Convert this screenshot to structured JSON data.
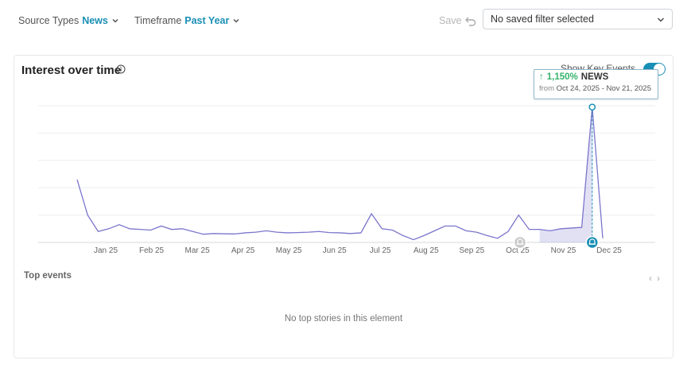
{
  "filters": {
    "source_types": {
      "label": "Source Types",
      "value": "News"
    },
    "timeframe": {
      "label": "Timeframe",
      "value": "Past Year"
    }
  },
  "toolbar": {
    "save_label": "Save",
    "saved_filter_placeholder": "No saved filter selected"
  },
  "card": {
    "title": "Interest over time",
    "show_key_events_label": "Show Key Events",
    "show_key_events_on": true
  },
  "tooltip": {
    "change": "1,150%",
    "series": "NEWS",
    "from_label": "from",
    "range": "Oct 24, 2025 - Nov 21, 2025"
  },
  "chart_data": {
    "type": "line",
    "x_tick_labels": [
      "Jan 25",
      "Feb 25",
      "Mar 25",
      "Apr 25",
      "May 25",
      "Jun 25",
      "Jul 25",
      "Aug 25",
      "Sep 25",
      "Oct 25",
      "Nov 25",
      "Dec 25"
    ],
    "series": [
      {
        "name": "NEWS",
        "color": "#7b75cc",
        "values": [
          46,
          20,
          8,
          10,
          13,
          10,
          9.5,
          9,
          12,
          9.5,
          10,
          8,
          6,
          6.5,
          6.3,
          6.2,
          7,
          7.5,
          8.5,
          7.5,
          7,
          7.2,
          7.5,
          8,
          7.2,
          7,
          6.5,
          7,
          21,
          10,
          9,
          5,
          2,
          5,
          8.5,
          12,
          12,
          8.5,
          7.5,
          5,
          3,
          8,
          20,
          9.5,
          9.5,
          8.5,
          10,
          10.5,
          11,
          99,
          3
        ]
      }
    ],
    "key_events": [
      {
        "label": "Oct 25",
        "color": "#bbbbbb"
      },
      {
        "label": "Nov 25",
        "color": "#1a8fb5",
        "highlighted": true
      }
    ],
    "highlighted_range": {
      "start": "Oct 24, 2025",
      "end": "Nov 21, 2025"
    },
    "ylim": [
      0,
      100
    ],
    "grid": true,
    "accent": "#1a8fb5"
  },
  "top_events": {
    "title": "Top events",
    "empty_message": "No top stories in this element"
  }
}
